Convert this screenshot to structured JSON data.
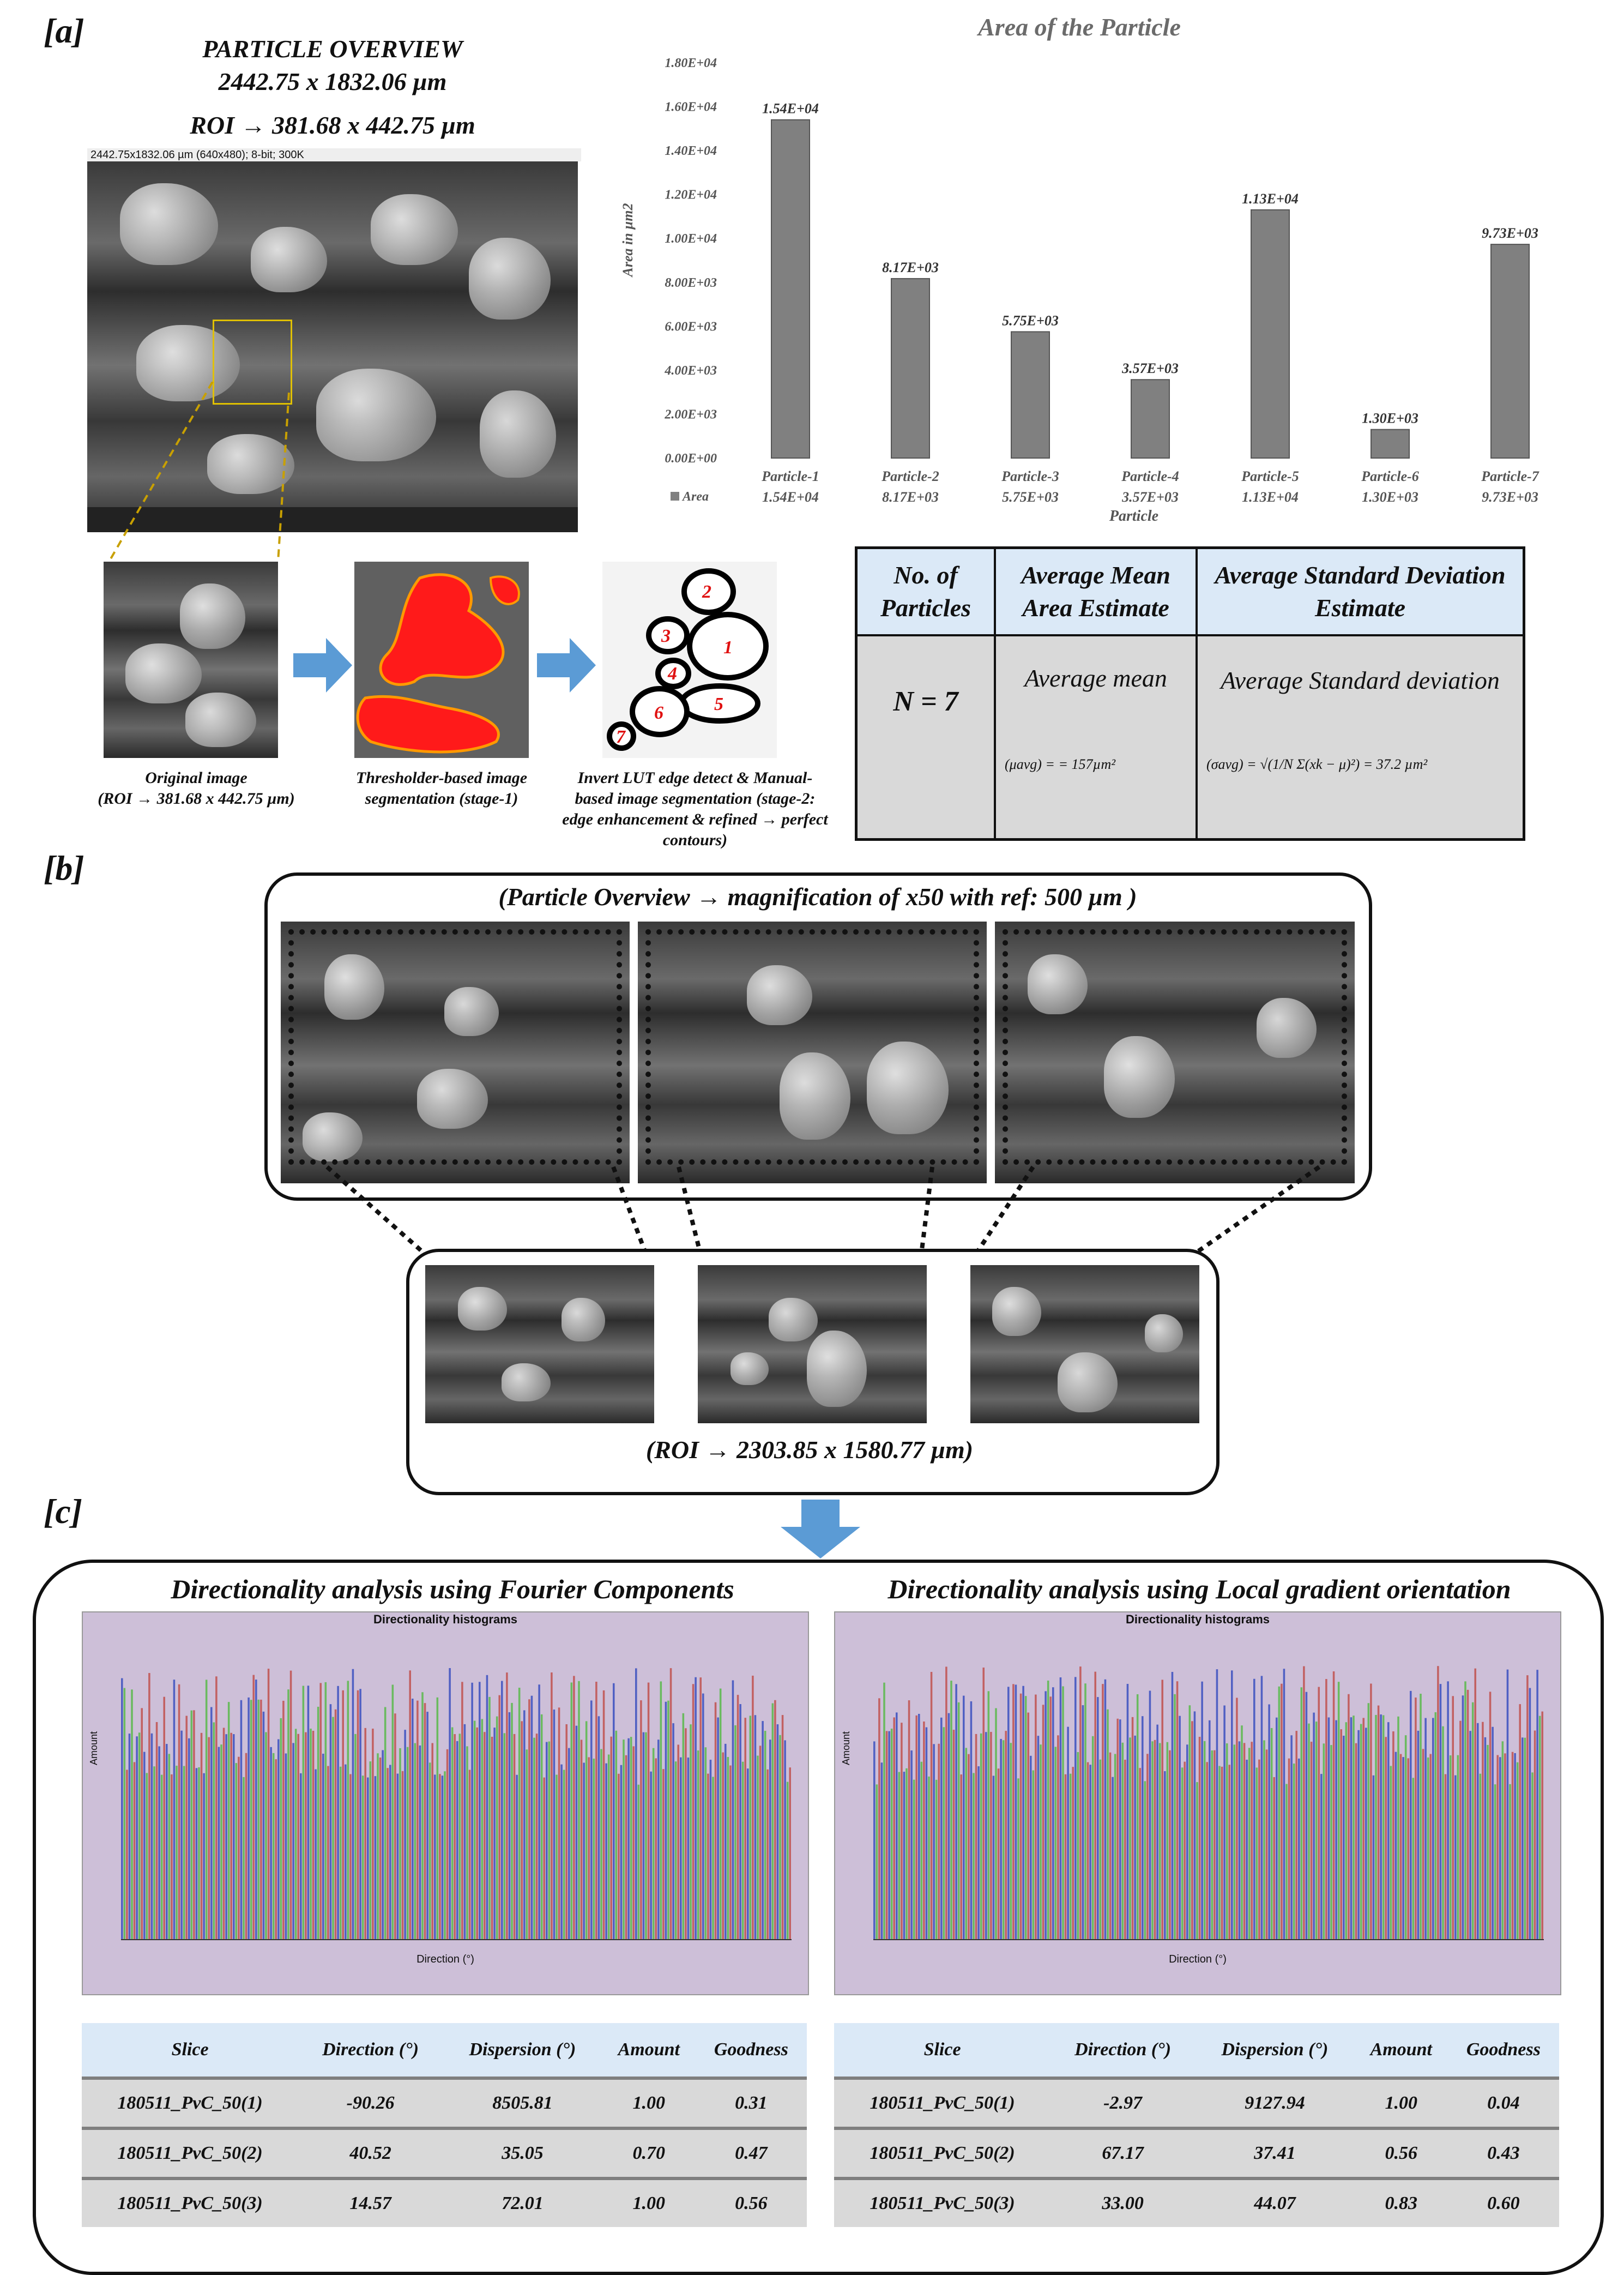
{
  "panel_labels": {
    "a": "[a]",
    "b": "[b]",
    "c": "[c]"
  },
  "overview": {
    "title": "PARTICLE OVERVIEW",
    "dims": "2442.75 x 1832.06 µm",
    "roi": "ROI → 381.68 x 442.75 µm",
    "image_header": "2442.75x1832.06 µm (640x480); 8-bit; 300K"
  },
  "pipeline": {
    "original_caption_1": "Original image",
    "original_caption_2": "(ROI → 381.68 x 442.75 µm)",
    "threshold_caption": "Thresholder-based image segmentation (stage-1)",
    "manual_caption": "Invert LUT edge detect & Manual-based image segmentation (stage-2: edge enhancement & refined → perfect contours)",
    "particle_numbers": [
      "1",
      "2",
      "3",
      "4",
      "5",
      "6",
      "7"
    ]
  },
  "chart_data": {
    "type": "bar",
    "title": "Area of the Particle",
    "xlabel": "Particle",
    "ylabel": "Area in µm2",
    "ylim": [
      0,
      18000
    ],
    "yticks": [
      "0.00E+00",
      "2.00E+03",
      "4.00E+03",
      "6.00E+03",
      "8.00E+03",
      "1.00E+04",
      "1.20E+04",
      "1.40E+04",
      "1.60E+04",
      "1.80E+04"
    ],
    "categories": [
      "Particle-1",
      "Particle-2",
      "Particle-3",
      "Particle-4",
      "Particle-5",
      "Particle-6",
      "Particle-7"
    ],
    "series": [
      {
        "name": "Area",
        "values": [
          15400,
          8170,
          5750,
          3570,
          11300,
          1300,
          9730
        ]
      }
    ],
    "data_labels": [
      "1.54E+04",
      "8.17E+03",
      "5.75E+03",
      "3.57E+03",
      "1.13E+04",
      "1.30E+03",
      "9.73E+03"
    ],
    "legend_placement": "bottom-left",
    "bar_color": "#808080"
  },
  "stats_table": {
    "headers": [
      "No. of Particles",
      "Average Mean Area Estimate",
      "Average Standard Deviation Estimate"
    ],
    "n": "N = 7",
    "mean_label": "Average mean",
    "mean_formula": "(μavg) =         = 157µm²",
    "sd_label": "Average Standard deviation",
    "sd_formula": "(σavg) = √(1/N Σ(xk − μ)²) = 37.2 µm²"
  },
  "panel_b": {
    "overview_title": "(Particle Overview → magnification of x50 with ref: 500 µm )",
    "roi_title": "(ROI → 2303.85 x 1580.77 µm)"
  },
  "panel_c": {
    "left_title": "Directionality analysis using Fourier Components",
    "right_title": "Directionality analysis using Local gradient orientation",
    "hist_title": "Directionality histograms",
    "hist_xlabel": "Direction (°)",
    "hist_ylabel": "Amount",
    "table_headers": [
      "Slice",
      "Direction (°)",
      "Dispersion (°)",
      "Amount",
      "Goodness"
    ],
    "left_rows": [
      [
        "180511_PvC_50(1)",
        "-90.26",
        "8505.81",
        "1.00",
        "0.31"
      ],
      [
        "180511_PvC_50(2)",
        "40.52",
        "35.05",
        "0.70",
        "0.47"
      ],
      [
        "180511_PvC_50(3)",
        "14.57",
        "72.01",
        "1.00",
        "0.56"
      ]
    ],
    "right_rows": [
      [
        "180511_PvC_50(1)",
        "-2.97",
        "9127.94",
        "1.00",
        "0.04"
      ],
      [
        "180511_PvC_50(2)",
        "67.17",
        "37.41",
        "0.56",
        "0.43"
      ],
      [
        "180511_PvC_50(3)",
        "33.00",
        "44.07",
        "0.83",
        "0.60"
      ]
    ]
  }
}
